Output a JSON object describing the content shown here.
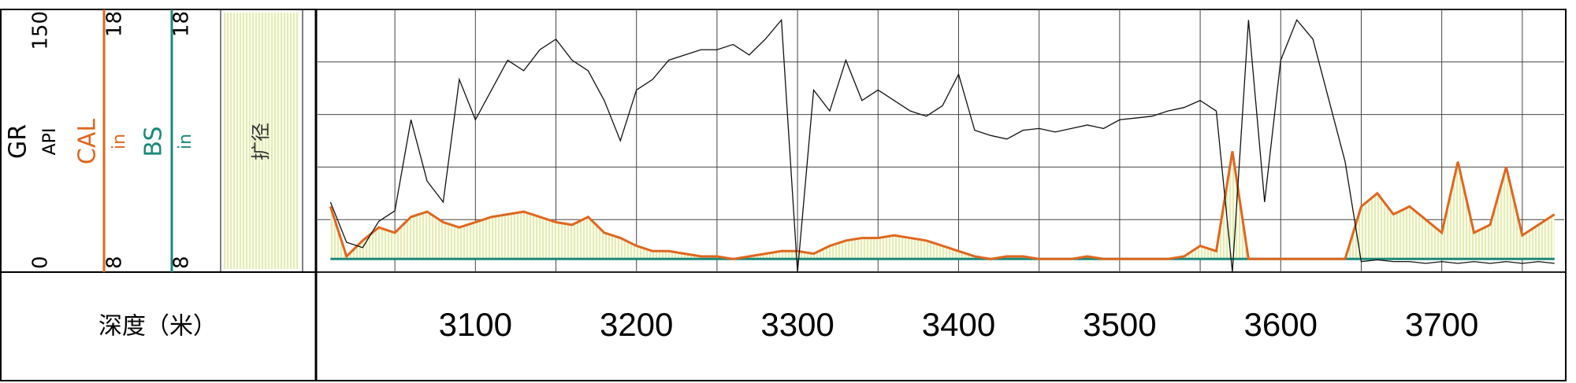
{
  "chart_data": {
    "type": "well-log",
    "header": {
      "gr_name": "GR",
      "gr_unit": "API",
      "cal_name": "CAL",
      "cal_unit": "in",
      "bs_name": "BS",
      "bs_unit": "in",
      "fill_legend": "扩径",
      "depth_label": "深度（米）"
    },
    "x": [
      3010,
      3020,
      3030,
      3040,
      3050,
      3060,
      3070,
      3080,
      3090,
      3100,
      3110,
      3120,
      3130,
      3140,
      3150,
      3160,
      3170,
      3180,
      3190,
      3200,
      3210,
      3220,
      3230,
      3240,
      3250,
      3260,
      3270,
      3280,
      3290,
      3300,
      3310,
      3320,
      3330,
      3340,
      3350,
      3360,
      3370,
      3380,
      3390,
      3400,
      3410,
      3420,
      3430,
      3440,
      3450,
      3460,
      3470,
      3480,
      3490,
      3500,
      3510,
      3520,
      3530,
      3540,
      3550,
      3560,
      3570,
      3580,
      3590,
      3600,
      3610,
      3620,
      3630,
      3640,
      3650,
      3660,
      3670,
      3680,
      3690,
      3700,
      3710,
      3720,
      3730,
      3740,
      3750,
      3760,
      3770
    ],
    "xlim": [
      3002,
      3776
    ],
    "xticks": [
      3100,
      3200,
      3300,
      3400,
      3500,
      3600,
      3700
    ],
    "xgrid": [
      3050,
      3100,
      3150,
      3200,
      3250,
      3300,
      3350,
      3400,
      3450,
      3500,
      3550,
      3600,
      3650,
      3700,
      3750
    ],
    "ylim": [
      0,
      150
    ],
    "yticks": [
      0,
      30,
      60,
      90,
      120,
      150
    ],
    "y2lim": [
      8,
      18
    ],
    "grid": true,
    "series": [
      {
        "name": "GR",
        "color": "#111111",
        "values": [
          40,
          17,
          14,
          29,
          35,
          87,
          52,
          40,
          110,
          87,
          104,
          121,
          115,
          127,
          133,
          121,
          115,
          98,
          75,
          104,
          110,
          121,
          124,
          127,
          127,
          130,
          124,
          133,
          144,
          0,
          104,
          92,
          121,
          98,
          104,
          98,
          92,
          89,
          95,
          113,
          81,
          78,
          76,
          81,
          82,
          80,
          82,
          84,
          82,
          87,
          88,
          89,
          92,
          94,
          98,
          92,
          0,
          144,
          40,
          121,
          144,
          133,
          98,
          63,
          6,
          7,
          6,
          6,
          5,
          6,
          5,
          6,
          5,
          6,
          5,
          6,
          5
        ]
      },
      {
        "name": "CAL",
        "color": "#e0661e",
        "axis": "y2",
        "values": [
          10.5,
          8.6,
          9.2,
          9.7,
          9.5,
          10.1,
          10.3,
          9.9,
          9.7,
          9.9,
          10.1,
          10.2,
          10.3,
          10.1,
          9.9,
          9.8,
          10.1,
          9.5,
          9.3,
          9.0,
          8.8,
          8.8,
          8.7,
          8.6,
          8.6,
          8.5,
          8.6,
          8.7,
          8.8,
          8.8,
          8.7,
          9.0,
          9.2,
          9.3,
          9.3,
          9.4,
          9.3,
          9.2,
          9.0,
          8.8,
          8.6,
          8.5,
          8.6,
          8.6,
          8.5,
          8.5,
          8.5,
          8.6,
          8.5,
          8.5,
          8.5,
          8.5,
          8.5,
          8.6,
          9.0,
          8.8,
          12.6,
          8.5,
          8.5,
          8.5,
          8.5,
          8.5,
          8.5,
          8.5,
          10.5,
          11.0,
          10.2,
          10.5,
          10.0,
          9.5,
          12.2,
          9.5,
          9.8,
          12.0,
          9.4,
          9.8,
          10.2
        ]
      },
      {
        "name": "BS",
        "color": "#1a8a7a",
        "axis": "y2",
        "values": [
          8.5,
          8.5,
          8.5,
          8.5,
          8.5,
          8.5,
          8.5,
          8.5,
          8.5,
          8.5,
          8.5,
          8.5,
          8.5,
          8.5,
          8.5,
          8.5,
          8.5,
          8.5,
          8.5,
          8.5,
          8.5,
          8.5,
          8.5,
          8.5,
          8.5,
          8.5,
          8.5,
          8.5,
          8.5,
          8.5,
          8.5,
          8.5,
          8.5,
          8.5,
          8.5,
          8.5,
          8.5,
          8.5,
          8.5,
          8.5,
          8.5,
          8.5,
          8.5,
          8.5,
          8.5,
          8.5,
          8.5,
          8.5,
          8.5,
          8.5,
          8.5,
          8.5,
          8.5,
          8.5,
          8.5,
          8.5,
          8.5,
          8.5,
          8.5,
          8.5,
          8.5,
          8.5,
          8.5,
          8.5,
          8.5,
          8.5,
          8.5,
          8.5,
          8.5,
          8.5,
          8.5,
          8.5,
          8.5,
          8.5,
          8.5,
          8.5,
          8.5
        ]
      }
    ]
  }
}
